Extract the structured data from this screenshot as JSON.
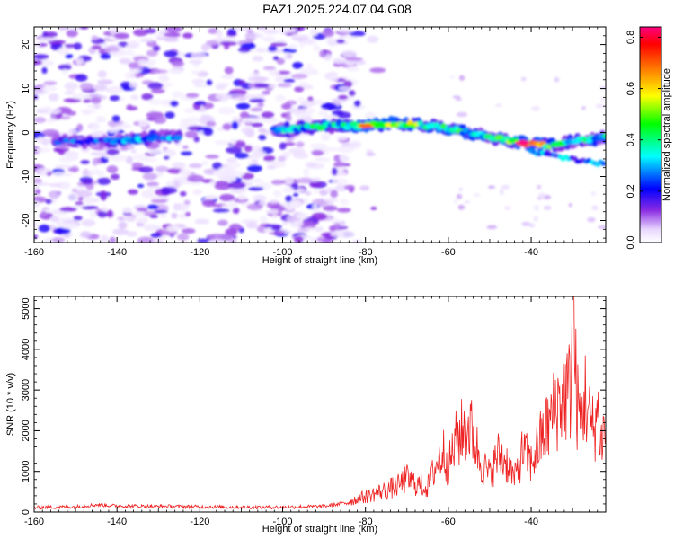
{
  "title": "PAZ1.2025.224.07.04.G08",
  "chart_data": [
    {
      "type": "heatmap",
      "xlabel": "Height of straight line (km)",
      "ylabel": "Frequency (Hz)",
      "xlim": [
        -160,
        -22
      ],
      "ylim": [
        -25,
        24
      ],
      "xticks": [
        -160,
        -140,
        -120,
        -100,
        -80,
        -60,
        -40
      ],
      "xtick_labels": [
        "-160",
        "-140",
        "-120",
        "-100",
        "-80",
        "-60",
        "-40"
      ],
      "yticks": [
        -20,
        -10,
        0,
        10,
        20
      ],
      "ytick_labels": [
        "-20",
        "-10",
        "0",
        "10",
        "20"
      ],
      "colorbar": {
        "label": "Normalized spectral amplitude",
        "range": [
          0,
          0.84
        ],
        "ticks": [
          0.0,
          0.2,
          0.4,
          0.6,
          0.8
        ],
        "tick_labels": [
          "0.0",
          "0.2",
          "0.4",
          "0.6",
          "0.8"
        ],
        "colormap": [
          "#ffffff",
          "#e8d8ff",
          "#8a2be2",
          "#0000ff",
          "#00ffff",
          "#00ff00",
          "#ffff00",
          "#ff8000",
          "#ff0000",
          "#ff0080"
        ]
      },
      "ridge": {
        "x": [
          -155,
          -145,
          -135,
          -130,
          -125,
          -102,
          -95,
          -90,
          -85,
          -80,
          -75,
          -70,
          -65,
          -60,
          -55,
          -50,
          -45,
          -40,
          -35,
          -30,
          -25,
          -22
        ],
        "y": [
          -2,
          -2,
          -1.5,
          -1,
          -1,
          0.5,
          1,
          1.5,
          1.5,
          1.5,
          2,
          2,
          1.5,
          1,
          0,
          -1,
          -2,
          -2.5,
          -3,
          -2,
          -1.5,
          -1
        ],
        "amplitude": [
          0.25,
          0.3,
          0.4,
          0.35,
          0.3,
          0.35,
          0.4,
          0.45,
          0.5,
          0.7,
          0.55,
          0.6,
          0.5,
          0.55,
          0.45,
          0.5,
          0.55,
          0.84,
          0.5,
          0.4,
          0.45,
          0.45
        ]
      },
      "noise_region_xlim": [
        -160,
        -83
      ],
      "noise_amplitude_range": [
        0.02,
        0.2
      ]
    },
    {
      "type": "line",
      "xlabel": "Height of straight line (km)",
      "ylabel": "SNR (10 * v/v)",
      "xlim": [
        -160,
        -22
      ],
      "ylim": [
        0,
        5300
      ],
      "xticks": [
        -160,
        -140,
        -120,
        -100,
        -80,
        -60,
        -40
      ],
      "xtick_labels": [
        "-160",
        "-140",
        "-120",
        "-100",
        "-80",
        "-60",
        "-40"
      ],
      "yticks": [
        0,
        1000,
        2000,
        3000,
        4000,
        5000
      ],
      "ytick_labels": [
        "0",
        "1000",
        "2000",
        "3000",
        "4000",
        "5000"
      ],
      "color": "#ee2222",
      "series": [
        {
          "x": [
            -160,
            -150,
            -145,
            -140,
            -130,
            -120,
            -110,
            -100,
            -90,
            -85,
            -80,
            -75,
            -72,
            -70,
            -68,
            -65,
            -63,
            -61,
            -60,
            -58,
            -55,
            -52,
            -50,
            -48,
            -46,
            -44,
            -42,
            -40,
            -38,
            -36,
            -34,
            -32,
            -30.5,
            -30,
            -29,
            -28,
            -27,
            -26,
            -25,
            -24,
            -23,
            -22
          ],
          "y": [
            110,
            130,
            180,
            150,
            140,
            130,
            120,
            120,
            140,
            220,
            380,
            540,
            650,
            820,
            700,
            600,
            1150,
            1500,
            1100,
            1800,
            2150,
            1200,
            900,
            1400,
            1250,
            800,
            1500,
            1200,
            1700,
            2100,
            2600,
            2900,
            3000,
            5300,
            2700,
            2200,
            2900,
            2300,
            2000,
            2500,
            1700,
            2300
          ]
        }
      ]
    }
  ]
}
